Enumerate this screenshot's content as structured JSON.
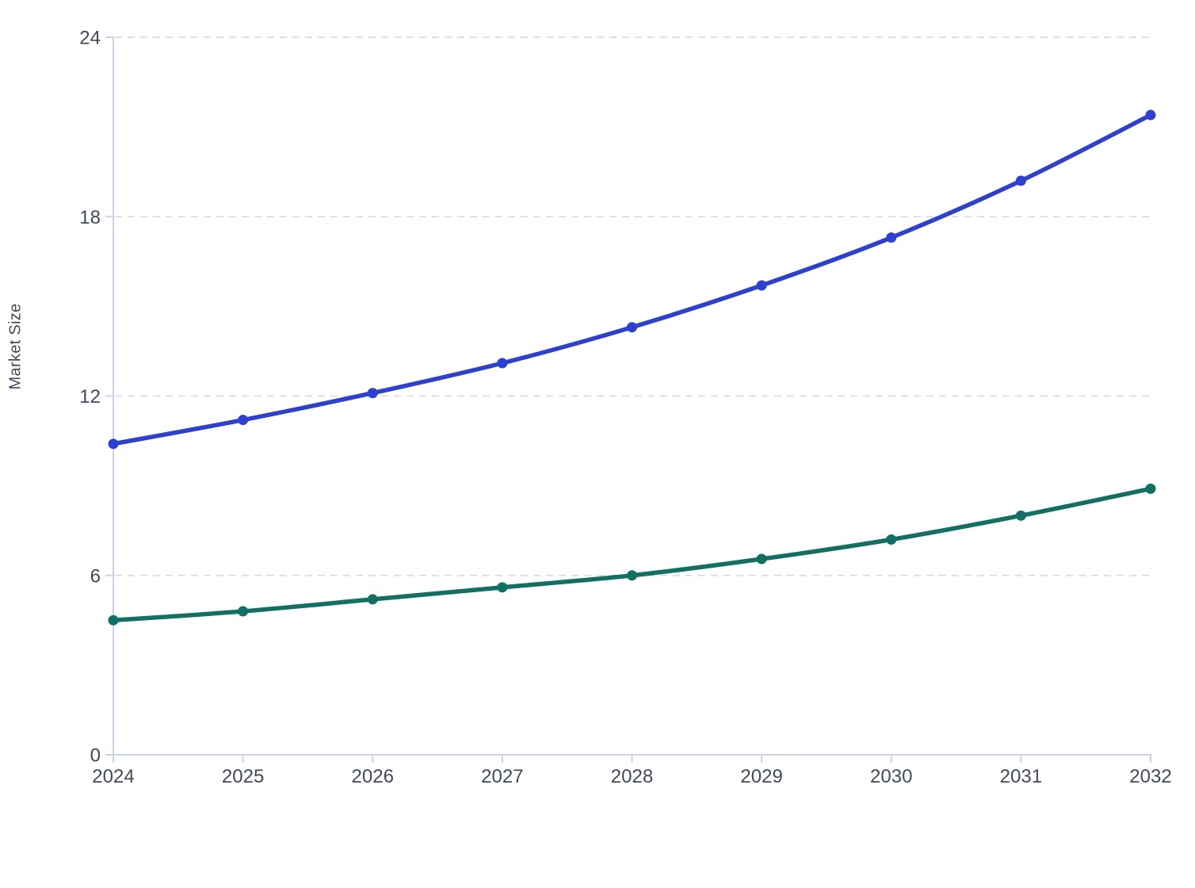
{
  "chart_data": {
    "type": "line",
    "title": "",
    "xlabel": "",
    "ylabel": "Market Size",
    "x": [
      2024,
      2025,
      2026,
      2027,
      2028,
      2029,
      2030,
      2031,
      2032
    ],
    "xtick_labels": [
      "2024",
      "2025",
      "2026",
      "2027",
      "2028",
      "2029",
      "2030",
      "2031",
      "2032"
    ],
    "series": [
      {
        "name": "blue",
        "color": "#2c40d4",
        "values": [
          10.4,
          11.2,
          12.1,
          13.1,
          14.3,
          15.7,
          17.3,
          19.2,
          21.4
        ]
      },
      {
        "name": "teal",
        "color": "#107065",
        "values": [
          4.5,
          4.8,
          5.2,
          5.6,
          6.0,
          6.55,
          7.2,
          8.0,
          8.9
        ]
      }
    ],
    "ylim": [
      0,
      24
    ],
    "yticks": [
      0,
      6,
      12,
      18,
      24
    ],
    "ytick_labels": [
      "0",
      "6",
      "12",
      "18",
      "24"
    ],
    "grid": "horizontal-dashed",
    "legend": "none",
    "marker": "circle",
    "colors": {
      "axis": "#c9d2f0",
      "grid": "#d9dce2",
      "tick_label": "#3f4a5c",
      "background": "#ffffff"
    }
  }
}
